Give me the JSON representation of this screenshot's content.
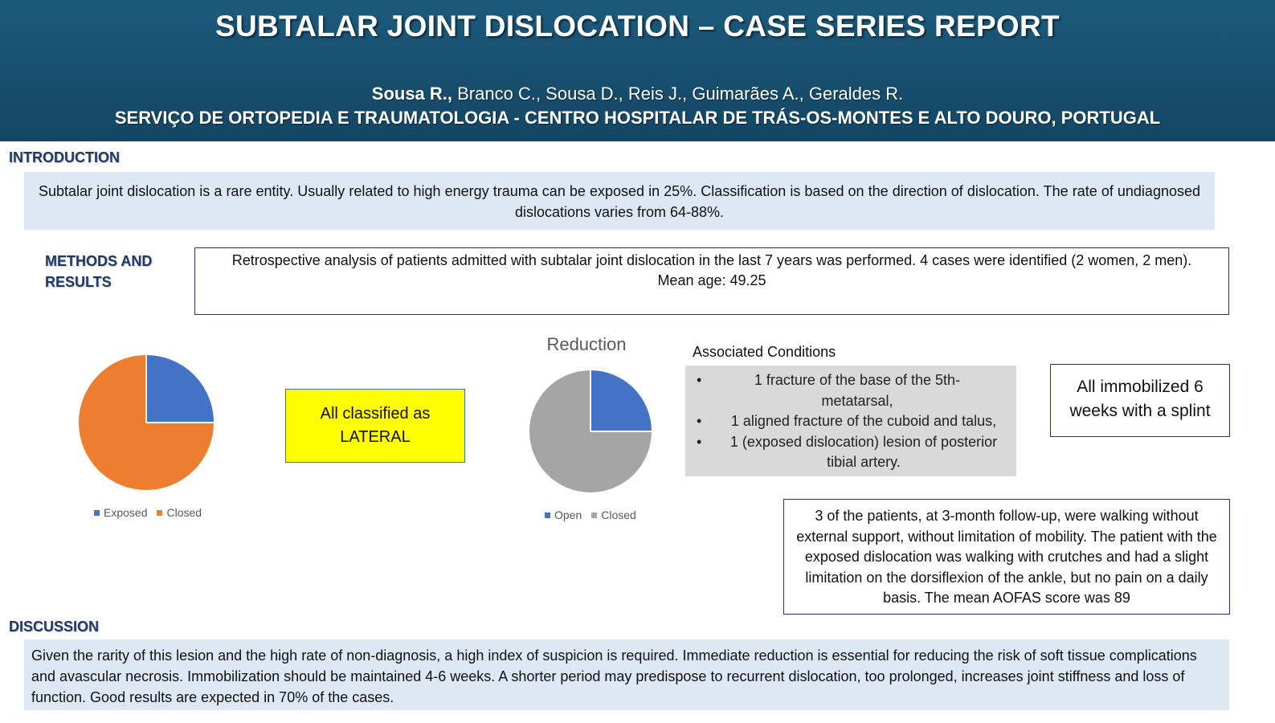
{
  "header": {
    "title": "SUBTALAR JOINT DISLOCATION – CASE SERIES REPORT",
    "lead_author": "Sousa R.,",
    "other_authors": " Branco C., Sousa D., Reis J., Guimarães A., Geraldes R.",
    "affiliation": "SERVIÇO DE ORTOPEDIA E TRAUMATOLOGIA - CENTRO HOSPITALAR DE TRÁS-OS-MONTES E ALTO DOURO, PORTUGAL"
  },
  "introduction": {
    "heading": "INTRODUCTION",
    "text": "Subtalar joint dislocation is a rare entity. Usually related to high energy trauma can be exposed in 25%. Classification is based on the direction of dislocation. The rate of undiagnosed dislocations varies from 64-88%."
  },
  "methods": {
    "heading_line1": "METHODS AND",
    "heading_line2": "RESULTS",
    "text_line1": "Retrospective analysis of patients admitted with subtalar joint dislocation in the last 7 years was performed. 4 cases were identified (2 women, 2 men).",
    "text_line2": "Mean age: 49.25"
  },
  "classification": {
    "line1": "All classified as",
    "line2": "LATERAL"
  },
  "associated": {
    "title": "Associated Conditions",
    "items": [
      "1 fracture of the base of the 5th-metatarsal,",
      "1 aligned fracture of the cuboid and talus,",
      "1 (exposed dislocation) lesion of posterior tibial artery."
    ]
  },
  "immobilization": {
    "text": "All immobilized 6 weeks with a splint"
  },
  "followup": {
    "text": "3 of the patients, at 3-month follow-up, were walking without external support, without limitation of mobility. The patient with the exposed dislocation was walking with crutches and had a slight limitation on the dorsiflexion of the ankle, but no pain on a daily basis. The mean AOFAS score was 89"
  },
  "discussion": {
    "heading": "DISCUSSION",
    "text": "Given the rarity of this lesion and the high rate of non-diagnosis, a high index of suspicion is required. Immediate reduction is essential for reducing the risk of soft tissue complications and avascular necrosis. Immobilization should be maintained 4-6 weeks. A shorter period may predispose to recurrent dislocation, too prolonged, increases joint stiffness and loss of function. Good results are expected in 70% of the cases."
  },
  "chart_data": [
    {
      "type": "pie",
      "title": "",
      "categories": [
        "Exposed",
        "Closed"
      ],
      "values": [
        1,
        3
      ],
      "colors": [
        "#4472c4",
        "#ed7d31"
      ],
      "legend": "bottom"
    },
    {
      "type": "pie",
      "title": "Reduction",
      "categories": [
        "Open",
        "Closed"
      ],
      "values": [
        1,
        3
      ],
      "colors": [
        "#4472c4",
        "#a5a5a5"
      ],
      "legend": "bottom"
    }
  ]
}
